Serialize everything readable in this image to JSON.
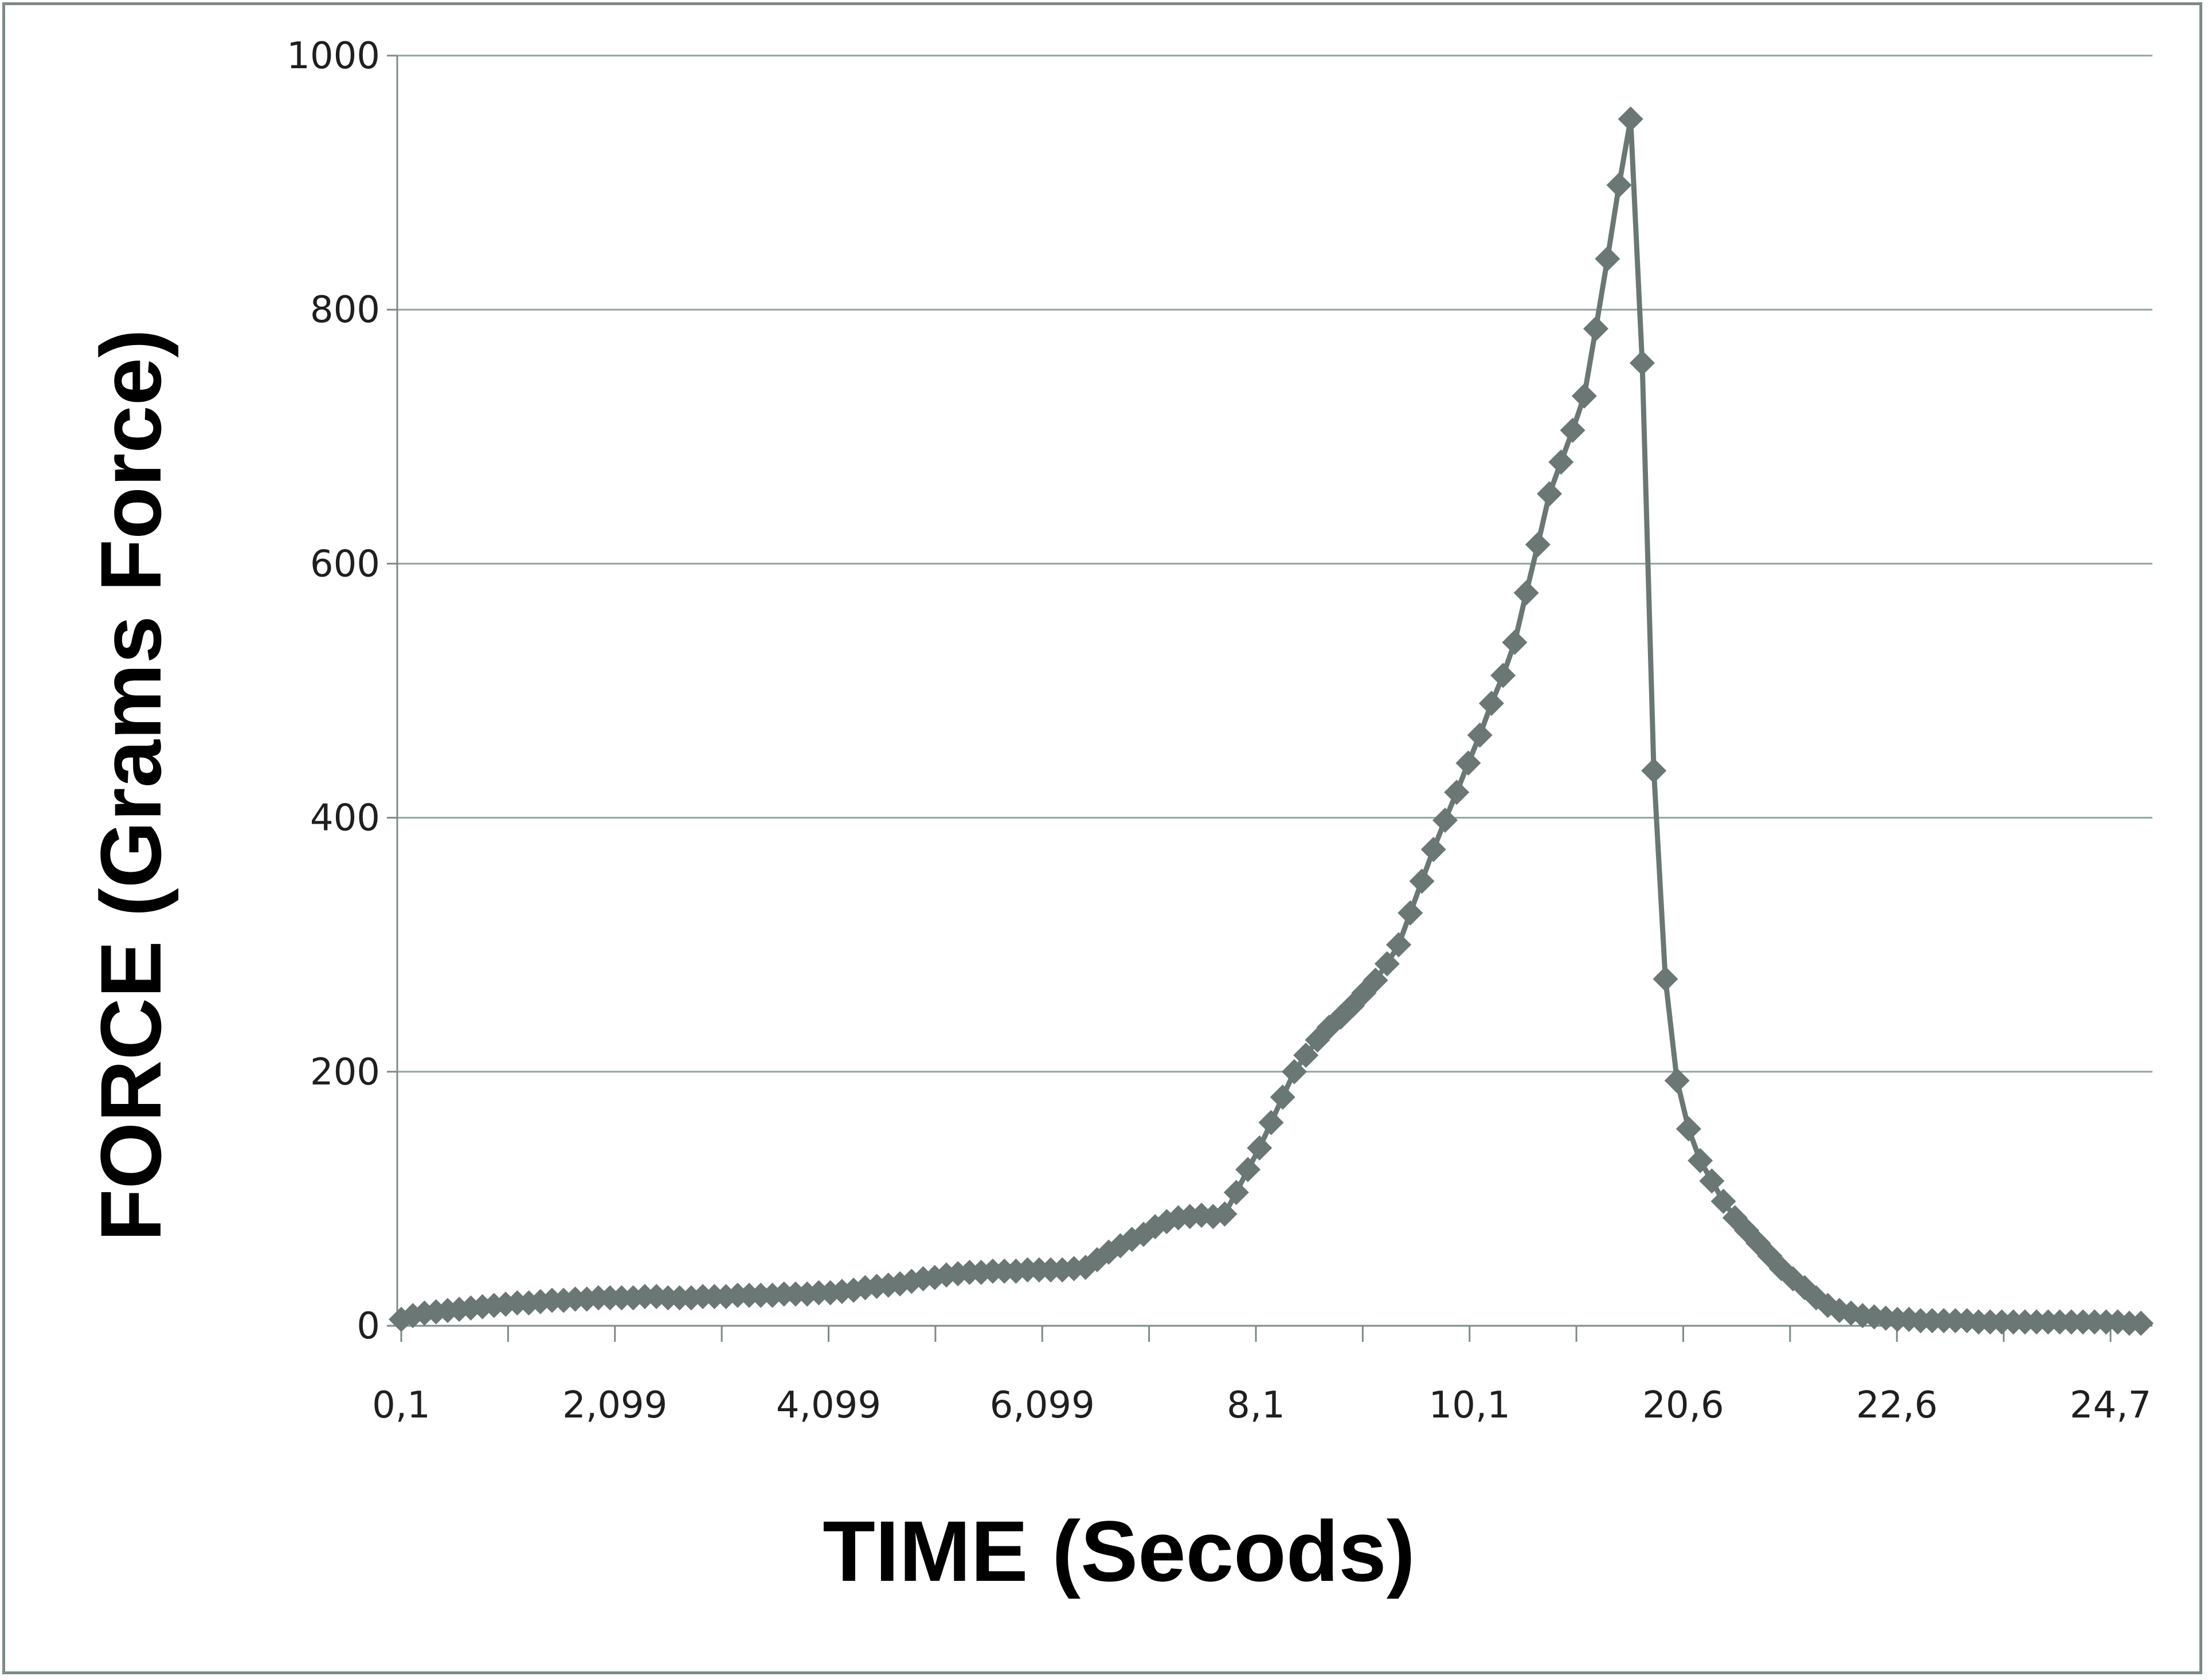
{
  "chart_data": {
    "type": "line",
    "title": "",
    "xlabel": "TIME (Secods)",
    "ylabel": "FORCE (Grams Force)",
    "ylim": [
      0,
      1000
    ],
    "y_ticks": [
      "0",
      "200",
      "400",
      "600",
      "800",
      "1000"
    ],
    "x_category_ticks": [
      "0,1",
      "2,099",
      "4,099",
      "6,099",
      "8,1",
      "10,1",
      "20,6",
      "22,6",
      "24,7"
    ],
    "grid": "horizontal",
    "legend": "none",
    "colors": {
      "series": "#6a7774",
      "grid": "#93a3a1",
      "axis": "#7d8a88"
    },
    "series": [
      {
        "marker": "diamond",
        "values": [
          5,
          8,
          10,
          11,
          12,
          13,
          14,
          15,
          16,
          17,
          18,
          18,
          19,
          20,
          20,
          21,
          21,
          22,
          22,
          22,
          22,
          23,
          23,
          22,
          22,
          22,
          23,
          23,
          23,
          24,
          24,
          24,
          24,
          25,
          25,
          25,
          26,
          26,
          27,
          28,
          30,
          31,
          32,
          33,
          35,
          37,
          38,
          40,
          41,
          42,
          42,
          43,
          43,
          43,
          44,
          44,
          44,
          44,
          45,
          46,
          52,
          58,
          63,
          68,
          72,
          78,
          82,
          85,
          86,
          87,
          86,
          88,
          105,
          123,
          140,
          160,
          180,
          200,
          213,
          225,
          235,
          243,
          252,
          262,
          272,
          285,
          300,
          325,
          350,
          375,
          398,
          420,
          443,
          465,
          490,
          512,
          538,
          577,
          615,
          655,
          680,
          705,
          732,
          785,
          840,
          898,
          950,
          758,
          437,
          273,
          193,
          155,
          130,
          114,
          98,
          85,
          75,
          65,
          55,
          45,
          37,
          30,
          22,
          16,
          12,
          10,
          8,
          7,
          6,
          5,
          5,
          4,
          4,
          4,
          4,
          4,
          3,
          3,
          3,
          3,
          3,
          3,
          3,
          3,
          3,
          3,
          3,
          3,
          3,
          2,
          2
        ]
      }
    ]
  }
}
